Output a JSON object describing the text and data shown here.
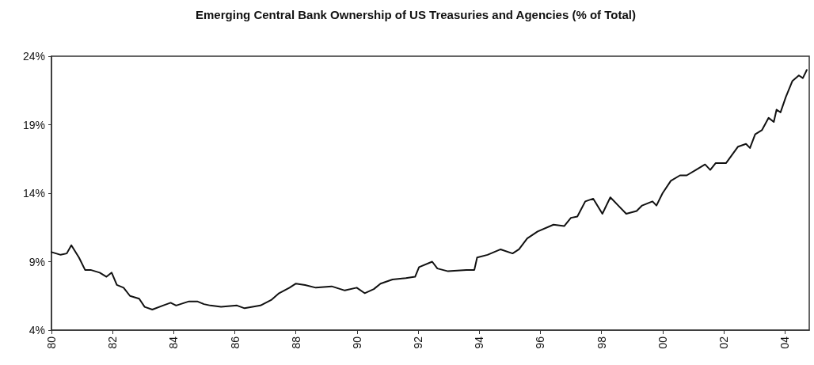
{
  "chart_data": {
    "type": "line",
    "title": "Emerging Central Bank Ownership of US Treasuries and Agencies (% of Total)",
    "x": [
      1980.0,
      1980.3,
      1980.5,
      1980.65,
      1980.9,
      1981.1,
      1981.28,
      1981.58,
      1981.8,
      1981.97,
      1982.14,
      1982.36,
      1982.57,
      1982.87,
      1983.05,
      1983.3,
      1983.65,
      1983.9,
      1984.08,
      1984.5,
      1984.77,
      1984.99,
      1985.2,
      1985.55,
      1986.07,
      1986.32,
      1986.84,
      1987.19,
      1987.45,
      1987.79,
      1988.0,
      1988.3,
      1988.65,
      1989.17,
      1989.6,
      1989.99,
      1990.25,
      1990.55,
      1990.77,
      1991.16,
      1991.6,
      1991.9,
      1992.03,
      1992.46,
      1992.63,
      1992.98,
      1993.58,
      1993.84,
      1993.93,
      1994.27,
      1994.7,
      1995.09,
      1995.3,
      1995.57,
      1995.91,
      1996.43,
      1996.78,
      1997.0,
      1997.21,
      1997.47,
      1997.73,
      1998.03,
      1998.29,
      1998.55,
      1998.81,
      1999.15,
      1999.33,
      1999.67,
      1999.8,
      2000.0,
      2000.27,
      2000.57,
      2000.79,
      2001.09,
      2001.39,
      2001.56,
      2001.74,
      2002.08,
      2002.47,
      2002.73,
      2002.86,
      2003.03,
      2003.25,
      2003.47,
      2003.64,
      2003.73,
      2003.86,
      2004.03,
      2004.25,
      2004.46,
      2004.59,
      2004.72
    ],
    "series": [
      {
        "color": "#111111",
        "values": [
          9.7,
          9.5,
          9.6,
          10.2,
          9.3,
          8.4,
          8.4,
          8.2,
          7.9,
          8.2,
          7.3,
          7.1,
          6.5,
          6.3,
          5.7,
          5.5,
          5.8,
          6.0,
          5.8,
          6.1,
          6.1,
          5.9,
          5.8,
          5.7,
          5.8,
          5.6,
          5.8,
          6.2,
          6.7,
          7.1,
          7.4,
          7.3,
          7.1,
          7.2,
          6.9,
          7.1,
          6.7,
          7.0,
          7.4,
          7.7,
          7.8,
          7.9,
          8.6,
          9.0,
          8.5,
          8.3,
          8.4,
          8.4,
          9.3,
          9.5,
          9.9,
          9.6,
          9.9,
          10.7,
          11.2,
          11.7,
          11.6,
          12.2,
          12.3,
          13.4,
          13.6,
          12.5,
          13.7,
          13.1,
          12.5,
          12.7,
          13.1,
          13.4,
          13.1,
          14.0,
          14.9,
          15.3,
          15.3,
          15.7,
          16.1,
          15.7,
          16.2,
          16.2,
          17.4,
          17.6,
          17.3,
          18.3,
          18.6,
          19.5,
          19.2,
          20.1,
          19.9,
          21.0,
          22.2,
          22.6,
          22.4,
          23.0
        ]
      }
    ],
    "xlim": [
      1980,
      2004.8
    ],
    "xticks": [
      {
        "value": 1980,
        "label": "80"
      },
      {
        "value": 1982,
        "label": "82"
      },
      {
        "value": 1984,
        "label": "84"
      },
      {
        "value": 1986,
        "label": "86"
      },
      {
        "value": 1988,
        "label": "88"
      },
      {
        "value": 1990,
        "label": "90"
      },
      {
        "value": 1992,
        "label": "92"
      },
      {
        "value": 1994,
        "label": "94"
      },
      {
        "value": 1996,
        "label": "96"
      },
      {
        "value": 1998,
        "label": "98"
      },
      {
        "value": 2000,
        "label": "00"
      },
      {
        "value": 2002,
        "label": "02"
      },
      {
        "value": 2004,
        "label": "04"
      }
    ],
    "ylim": [
      4,
      24
    ],
    "yticks": [
      {
        "value": 4,
        "label": "4%"
      },
      {
        "value": 9,
        "label": "9%"
      },
      {
        "value": 14,
        "label": "14%"
      },
      {
        "value": 19,
        "label": "19%"
      },
      {
        "value": 24,
        "label": "24%"
      }
    ],
    "grid": false,
    "marker": "none",
    "line_style": "solid"
  }
}
